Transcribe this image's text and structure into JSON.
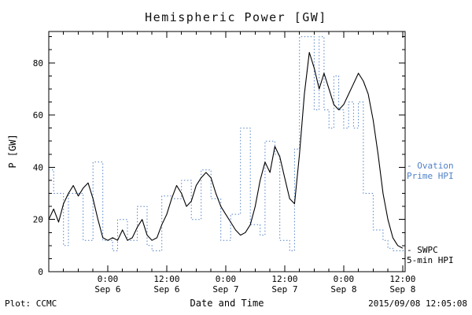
{
  "title": "Hemispheric Power [GW]",
  "axes": {
    "xlabel": "Date and Time",
    "ylabel": "P [GW]"
  },
  "footer": {
    "left": "Plot: CCMC",
    "right": "2015/09/08 12:05:08"
  },
  "legend": {
    "ovation": {
      "line1": "- Ovation",
      "line2": "Prime HPI",
      "color": "#4f81c7"
    },
    "swpc": {
      "line1": "- SWPC",
      "line2": "5-min HPI",
      "color": "#000000"
    }
  },
  "chart_data": {
    "type": "line",
    "title": "Hemispheric Power [GW]",
    "xlabel": "Date and Time",
    "ylabel": "P [GW]",
    "ylim": [
      0,
      92
    ],
    "yticks": [
      0,
      20,
      40,
      60,
      80
    ],
    "y_minor_step": 5,
    "x_hours_range": [
      0,
      72.5
    ],
    "x_minor_step": 3,
    "x_axis_note": "hours since 2015-09-05 12:00 UT",
    "xticks": [
      {
        "t": 12,
        "time": "0:00",
        "date": "Sep 6"
      },
      {
        "t": 24,
        "time": "12:00",
        "date": "Sep 6"
      },
      {
        "t": 36,
        "time": "0:00",
        "date": "Sep 7"
      },
      {
        "t": 48,
        "time": "12:00",
        "date": "Sep 7"
      },
      {
        "t": 60,
        "time": "0:00",
        "date": "Sep 8"
      },
      {
        "t": 72,
        "time": "12:00",
        "date": "Sep 8"
      }
    ],
    "grid": false,
    "legend_position": "right-outside",
    "series": [
      {
        "name": "Ovation Prime HPI",
        "color": "#4f81c7",
        "line": "dotted",
        "mode": "step",
        "points": [
          [
            0,
            39
          ],
          [
            1,
            30
          ],
          [
            3,
            10
          ],
          [
            4,
            30
          ],
          [
            7,
            12
          ],
          [
            9,
            42
          ],
          [
            11,
            12
          ],
          [
            13,
            8
          ],
          [
            14,
            20
          ],
          [
            16,
            12
          ],
          [
            18,
            25
          ],
          [
            20,
            10
          ],
          [
            21,
            8
          ],
          [
            23,
            29
          ],
          [
            25,
            28
          ],
          [
            27,
            35
          ],
          [
            29,
            20
          ],
          [
            31,
            39
          ],
          [
            33,
            28
          ],
          [
            35,
            12
          ],
          [
            37,
            22
          ],
          [
            39,
            55
          ],
          [
            41,
            18
          ],
          [
            43,
            14
          ],
          [
            44,
            50
          ],
          [
            46,
            45
          ],
          [
            47,
            12
          ],
          [
            49,
            8
          ],
          [
            50,
            47
          ],
          [
            51,
            90
          ],
          [
            54,
            62
          ],
          [
            55,
            90
          ],
          [
            56,
            62
          ],
          [
            57,
            55
          ],
          [
            58,
            75
          ],
          [
            59,
            62
          ],
          [
            60,
            55
          ],
          [
            61,
            65
          ],
          [
            62,
            55
          ],
          [
            63,
            65
          ],
          [
            64,
            30
          ],
          [
            66,
            16
          ],
          [
            68,
            12
          ],
          [
            69,
            9
          ],
          [
            70,
            8
          ],
          [
            72.5,
            8
          ]
        ]
      },
      {
        "name": "SWPC 5-min HPI",
        "color": "#000000",
        "line": "solid",
        "mode": "linear",
        "t_start": 0,
        "dt": 1,
        "values": [
          20,
          24,
          19,
          26,
          30,
          33,
          29,
          32,
          34,
          28,
          20,
          13,
          12,
          13,
          12,
          16,
          12,
          13,
          17,
          20,
          14,
          12,
          13,
          18,
          22,
          28,
          33,
          30,
          25,
          27,
          33,
          36,
          38,
          36,
          30,
          25,
          22,
          19,
          16,
          14,
          15,
          18,
          25,
          35,
          42,
          38,
          48,
          44,
          36,
          28,
          26,
          45,
          68,
          84,
          78,
          70,
          76,
          70,
          64,
          62,
          64,
          68,
          72,
          76,
          73,
          68,
          58,
          45,
          30,
          20,
          13,
          10,
          9
        ]
      }
    ]
  }
}
